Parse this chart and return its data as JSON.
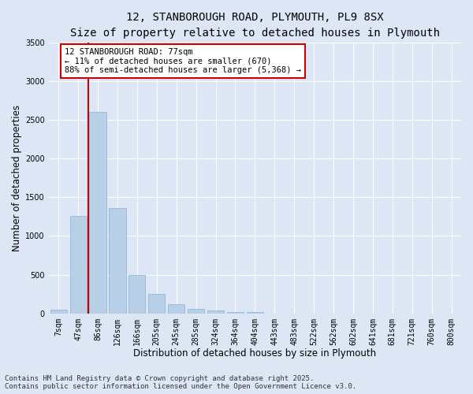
{
  "title_line1": "12, STANBOROUGH ROAD, PLYMOUTH, PL9 8SX",
  "title_line2": "Size of property relative to detached houses in Plymouth",
  "xlabel": "Distribution of detached houses by size in Plymouth",
  "ylabel": "Number of detached properties",
  "categories": [
    "7sqm",
    "47sqm",
    "86sqm",
    "126sqm",
    "166sqm",
    "205sqm",
    "245sqm",
    "285sqm",
    "324sqm",
    "364sqm",
    "404sqm",
    "443sqm",
    "483sqm",
    "522sqm",
    "562sqm",
    "602sqm",
    "641sqm",
    "681sqm",
    "721sqm",
    "760sqm",
    "800sqm"
  ],
  "values": [
    50,
    1260,
    2600,
    1360,
    500,
    250,
    120,
    55,
    40,
    20,
    15,
    0,
    0,
    0,
    0,
    0,
    0,
    0,
    0,
    0,
    0
  ],
  "bar_color": "#b8cfe8",
  "bar_edge_color": "#8ab0d0",
  "vline_x": 1.5,
  "vline_color": "#cc0000",
  "annotation_text": "12 STANBOROUGH ROAD: 77sqm\n← 11% of detached houses are smaller (670)\n88% of semi-detached houses are larger (5,368) →",
  "annotation_box_color": "#ffffff",
  "annotation_box_edge": "#cc0000",
  "ylim": [
    0,
    3500
  ],
  "yticks": [
    0,
    500,
    1000,
    1500,
    2000,
    2500,
    3000,
    3500
  ],
  "background_color": "#dce6f5",
  "plot_bg_color": "#dce6f5",
  "footer_line1": "Contains HM Land Registry data © Crown copyright and database right 2025.",
  "footer_line2": "Contains public sector information licensed under the Open Government Licence v3.0.",
  "title_fontsize": 10,
  "subtitle_fontsize": 9,
  "axis_label_fontsize": 8.5,
  "tick_fontsize": 7,
  "annotation_fontsize": 7.5,
  "footer_fontsize": 6.5
}
